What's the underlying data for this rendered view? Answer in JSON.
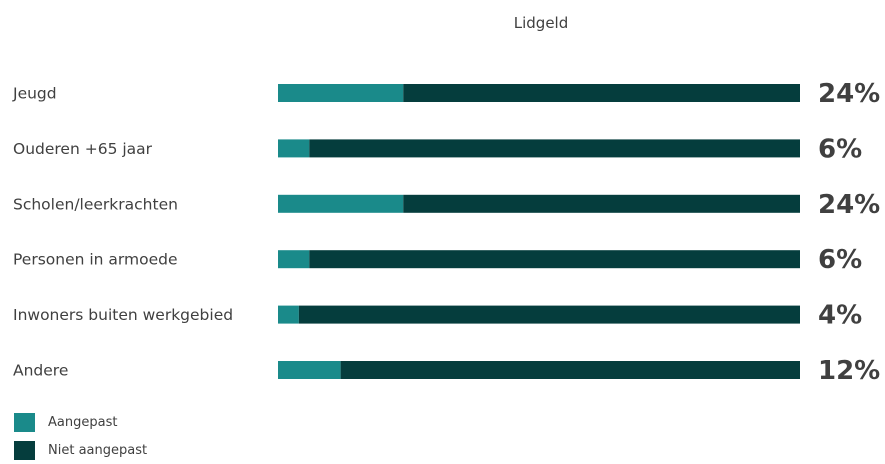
{
  "chart_data": {
    "type": "bar",
    "orientation": "horizontal",
    "stacked": true,
    "title": "Lidgeld",
    "categories": [
      "Jeugd",
      "Ouderen +65 jaar",
      "Scholen/leerkrachten",
      "Personen in armoede",
      "Inwoners buiten werkgebied",
      "Andere"
    ],
    "series": [
      {
        "name": "Aangepast",
        "values": [
          24,
          6,
          24,
          6,
          4,
          12
        ],
        "color": "#1a8a8a"
      },
      {
        "name": "Niet aangepast",
        "values": [
          76,
          94,
          76,
          94,
          96,
          88
        ],
        "color": "#053d3d"
      }
    ],
    "data_labels": [
      "24%",
      "6%",
      "24%",
      "6%",
      "4%",
      "12%"
    ],
    "xlim": [
      0,
      100
    ],
    "grid": false,
    "legend_position": "bottom-left"
  }
}
